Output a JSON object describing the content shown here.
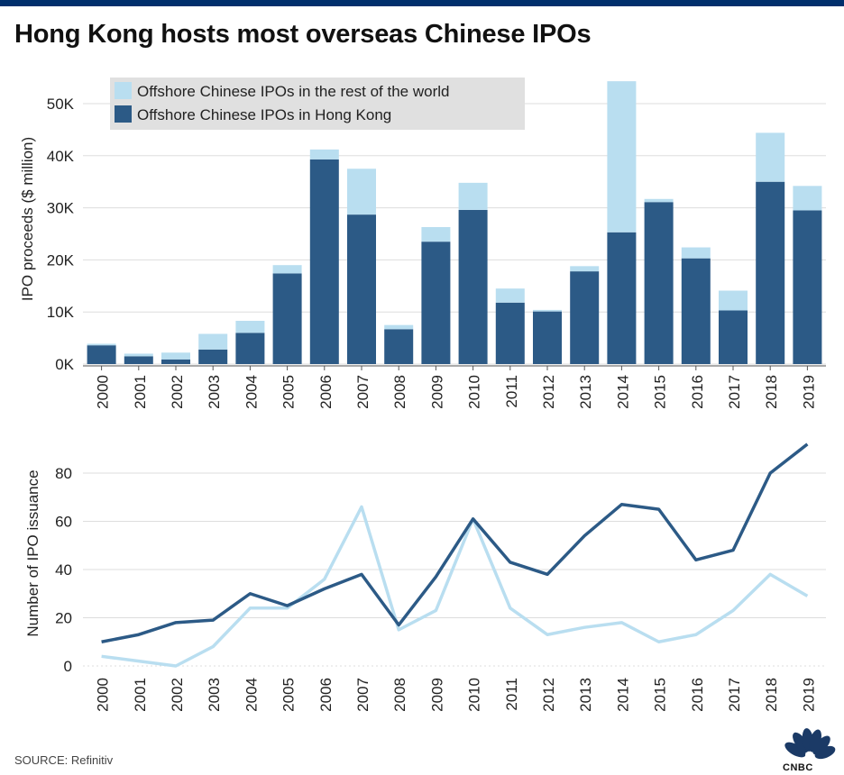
{
  "title": "Hong Kong hosts most overseas Chinese IPOs",
  "source": "SOURCE: Refinitiv",
  "logo_text": "CNBC",
  "colors": {
    "hk": "#2c5a86",
    "rest": "#b9def0",
    "grid": "#dddddd",
    "legend_bg": "#e0e0e0",
    "topbar": "#002f6c"
  },
  "chart_data": [
    {
      "type": "bar",
      "stacked": true,
      "ylabel": "IPO proceeds ($ million)",
      "ylim": [
        0,
        55000
      ],
      "yticks": [
        0,
        10000,
        20000,
        30000,
        40000,
        50000
      ],
      "ytick_labels": [
        "0K",
        "10K",
        "20K",
        "30K",
        "40K",
        "50K"
      ],
      "categories": [
        "2000",
        "2001",
        "2002",
        "2003",
        "2004",
        "2005",
        "2006",
        "2007",
        "2008",
        "2009",
        "2010",
        "2011",
        "2012",
        "2013",
        "2014",
        "2015",
        "2016",
        "2017",
        "2018",
        "2019"
      ],
      "legend_position": "top-left",
      "series": [
        {
          "name": "Offshore Chinese IPOs in Hong Kong",
          "values": [
            3600,
            1500,
            900,
            2800,
            6000,
            17400,
            39300,
            28700,
            6700,
            23500,
            29600,
            11800,
            10100,
            17800,
            25300,
            31100,
            20300,
            10300,
            35000,
            29500
          ]
        },
        {
          "name": "Offshore Chinese IPOs in the rest of the world",
          "values": [
            300,
            500,
            1300,
            3000,
            2300,
            1600,
            1900,
            8800,
            800,
            2800,
            5200,
            2700,
            300,
            1000,
            29000,
            600,
            2100,
            3800,
            9400,
            4700
          ]
        }
      ],
      "legend": [
        "Offshore Chinese IPOs in the rest of the world",
        "Offshore Chinese IPOs in Hong Kong"
      ]
    },
    {
      "type": "line",
      "ylabel": "Number of IPO issuance",
      "ylim": [
        0,
        92
      ],
      "yticks": [
        0,
        20,
        40,
        60,
        80
      ],
      "ytick_labels": [
        "0",
        "20",
        "40",
        "60",
        "80"
      ],
      "categories": [
        "2000",
        "2001",
        "2002",
        "2003",
        "2004",
        "2005",
        "2006",
        "2007",
        "2008",
        "2009",
        "2010",
        "2011",
        "2012",
        "2013",
        "2014",
        "2015",
        "2016",
        "2017",
        "2018",
        "2019"
      ],
      "series": [
        {
          "name": "Offshore Chinese IPOs in Hong Kong",
          "values": [
            10,
            13,
            18,
            19,
            30,
            25,
            32,
            38,
            17,
            37,
            61,
            43,
            38,
            54,
            67,
            65,
            44,
            48,
            80,
            92
          ]
        },
        {
          "name": "Offshore Chinese IPOs in the rest of the world",
          "values": [
            4,
            2,
            0,
            8,
            24,
            24,
            36,
            66,
            15,
            23,
            61,
            24,
            13,
            16,
            18,
            10,
            13,
            23,
            38,
            29
          ]
        }
      ]
    }
  ]
}
